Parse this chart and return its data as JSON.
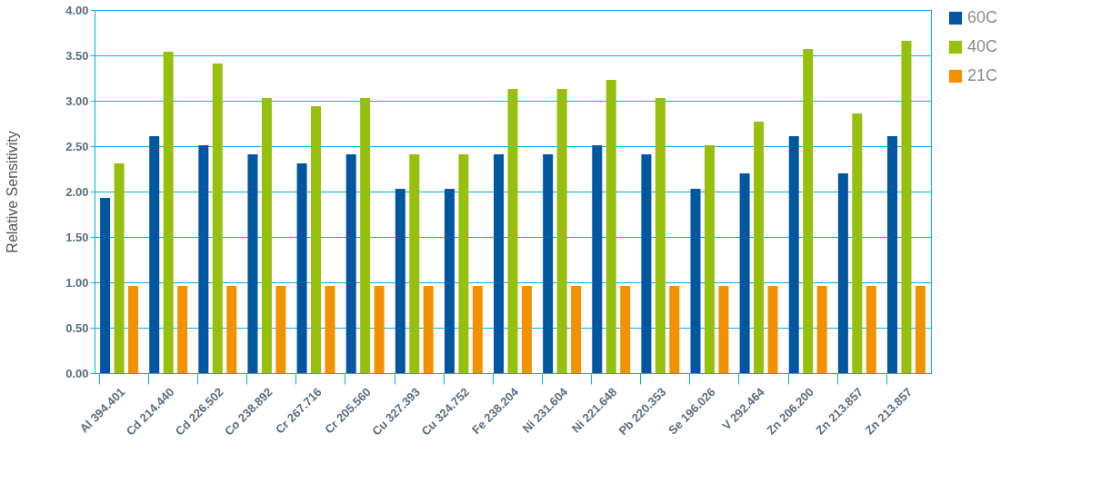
{
  "chart_data": {
    "type": "bar",
    "ylabel": "Relative Sensitivity",
    "categories": [
      "Al 394.401",
      "Cd 214.440",
      "Cd 226.502",
      "Co 238.892",
      "Cr 267.716",
      "Cr 205.560",
      "Cu 327.393",
      "Cu 324.752",
      "Fe 238.204",
      "Ni 231.604",
      "Ni 221.648",
      "Pb 220.353",
      "Se 196.026",
      "V 292.464",
      "Zn 206.200",
      "Zn 213.857",
      "Zn 213.857"
    ],
    "series": [
      {
        "name": "60C",
        "color": "#0057a0",
        "values": [
          1.93,
          2.61,
          2.51,
          2.41,
          2.31,
          2.41,
          2.03,
          2.03,
          2.41,
          2.41,
          2.51,
          2.41,
          2.03,
          2.2,
          2.61,
          2.2,
          2.61
        ]
      },
      {
        "name": "40C",
        "color": "#97bf0d",
        "values": [
          2.31,
          3.54,
          3.41,
          3.03,
          2.94,
          3.03,
          2.41,
          2.41,
          3.13,
          3.13,
          3.23,
          3.03,
          2.51,
          2.77,
          3.57,
          2.86,
          3.66
        ]
      },
      {
        "name": "21C",
        "color": "#f39200",
        "values": [
          0.96,
          0.96,
          0.96,
          0.96,
          0.96,
          0.96,
          0.96,
          0.96,
          0.96,
          0.96,
          0.96,
          0.96,
          0.96,
          0.96,
          0.96,
          0.96,
          0.96
        ]
      }
    ],
    "ylim": [
      0,
      4
    ],
    "yticks": [
      {
        "value": 0,
        "label": "0.00"
      },
      {
        "value": 0.5,
        "label": "0.50"
      },
      {
        "value": 1,
        "label": "1.00"
      },
      {
        "value": 1.5,
        "label": "1.50"
      },
      {
        "value": 2,
        "label": "2.00"
      },
      {
        "value": 2.5,
        "label": "2.50"
      },
      {
        "value": 3,
        "label": "3.00"
      },
      {
        "value": 3.5,
        "label": "3.50"
      },
      {
        "value": 4,
        "label": "4.00"
      }
    ],
    "grid": "y",
    "legend": "top right"
  }
}
